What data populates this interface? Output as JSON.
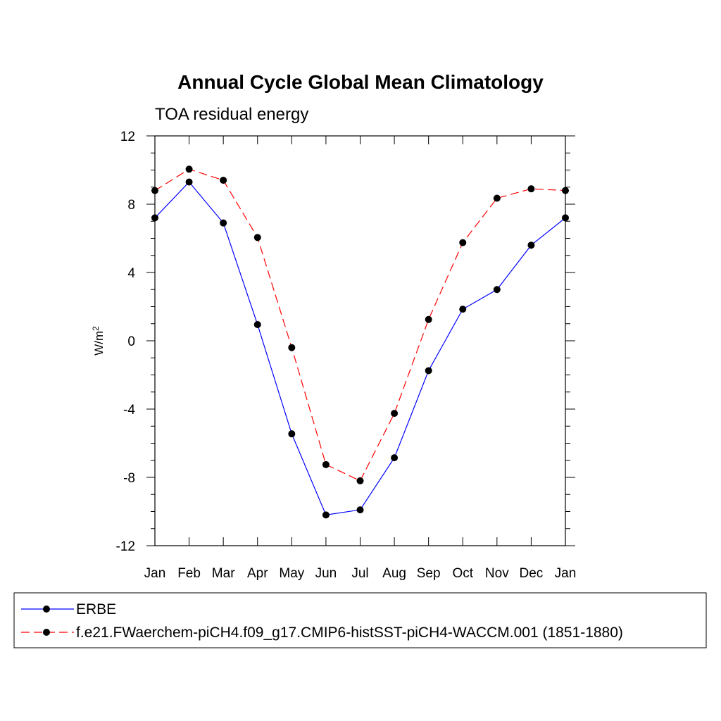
{
  "chart_data": {
    "type": "line",
    "title": "Annual Cycle Global Mean Climatology",
    "subtitle": "TOA residual energy",
    "ylabel": "W/m",
    "ylabel_sup": "2",
    "xlabel": "",
    "categories": [
      "Jan",
      "Feb",
      "Mar",
      "Apr",
      "May",
      "Jun",
      "Jul",
      "Aug",
      "Sep",
      "Oct",
      "Nov",
      "Dec",
      "Jan"
    ],
    "ylim": [
      -12,
      12
    ],
    "yticks": [
      -12,
      -8,
      -4,
      0,
      4,
      8,
      12
    ],
    "ytick_labels": [
      "-12",
      "-8",
      "-4",
      "0",
      "4",
      "8",
      "12"
    ],
    "grid": false,
    "legend_position": "bottom",
    "series": [
      {
        "name": "ERBE",
        "color": "#0000ff",
        "dash": "solid",
        "marker": "filled-circle",
        "values": [
          7.2,
          9.3,
          6.9,
          0.95,
          -5.45,
          -10.2,
          -9.9,
          -6.85,
          -1.75,
          1.85,
          3.0,
          5.6,
          7.2
        ]
      },
      {
        "name": "f.e21.FWaerchem-piCH4.f09_g17.CMIP6-histSST-piCH4-WACCM.001 (1851-1880)",
        "color": "#ff0000",
        "dash": "dashed",
        "marker": "filled-circle",
        "values": [
          8.8,
          10.05,
          9.4,
          6.05,
          -0.4,
          -7.25,
          -8.2,
          -4.25,
          1.25,
          5.75,
          8.35,
          8.9,
          8.8
        ]
      }
    ]
  }
}
